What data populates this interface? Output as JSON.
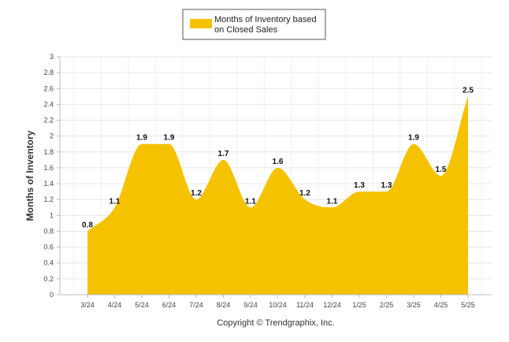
{
  "chart_data": {
    "type": "area",
    "categories": [
      "3/24",
      "4/24",
      "5/24",
      "6/24",
      "7/24",
      "8/24",
      "9/24",
      "10/24",
      "11/24",
      "12/24",
      "1/25",
      "2/25",
      "3/25",
      "4/25",
      "5/25"
    ],
    "series": [
      {
        "name": "Months of Inventory based on Closed Sales",
        "values": [
          0.8,
          1.1,
          1.9,
          1.9,
          1.2,
          1.7,
          1.1,
          1.6,
          1.2,
          1.1,
          1.3,
          1.3,
          1.9,
          1.5,
          2.5
        ],
        "color": "#F5C200"
      }
    ],
    "ylabel": "Months of Inventory",
    "xlabel": "",
    "ylim": [
      0,
      3
    ],
    "yticks": [
      "0",
      "0.2",
      "0.4",
      "0.6",
      "0.8",
      "1",
      "1.2",
      "1.4",
      "1.6",
      "1.8",
      "2",
      "2.2",
      "2.4",
      "2.6",
      "2.8",
      "3"
    ],
    "grid": true,
    "legend_position": "top-center",
    "data_labels": [
      "0.8",
      "1.1",
      "1.9",
      "1.9",
      "1.2",
      "1.7",
      "1.1",
      "1.6",
      "1.2",
      "1.1",
      "1.3",
      "1.3",
      "1.9",
      "1.5",
      "2.5"
    ]
  },
  "legend": {
    "line1": "Months of Inventory based",
    "line2": "on Closed Sales"
  },
  "footer": {
    "copyright": "Copyright © Trendgraphix, Inc."
  }
}
